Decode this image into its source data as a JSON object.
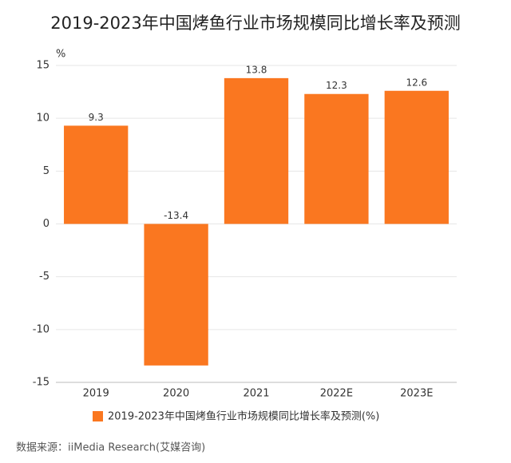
{
  "chart_data": {
    "type": "bar",
    "title": "2019-2023年中国烤鱼行业市场规模同比增长率及预测",
    "y_label": "%",
    "categories": [
      "2019",
      "2020",
      "2021",
      "2022E",
      "2023E"
    ],
    "series": [
      {
        "name": "2019-2023年中国烤鱼行业市场规模同比增长率及预测(%)",
        "color": "#fa7720",
        "values": [
          9.3,
          -13.4,
          13.8,
          12.3,
          12.6
        ]
      }
    ],
    "ylim": [
      -15,
      15
    ],
    "yticks": [
      -15,
      -10,
      -5,
      0,
      5,
      10,
      15
    ],
    "grid": true,
    "source": "数据来源：iiMedia Research(艾媒咨询)"
  }
}
